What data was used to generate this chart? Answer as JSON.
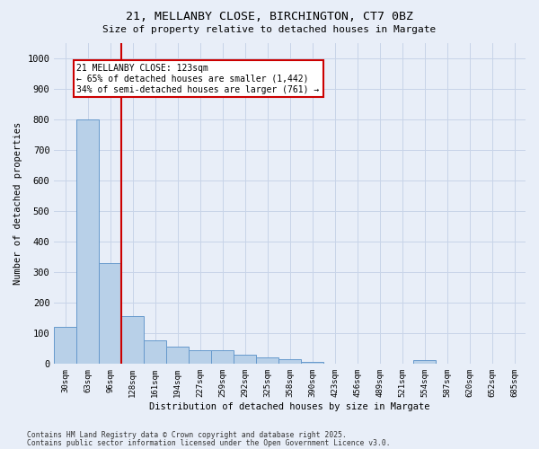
{
  "title": "21, MELLANBY CLOSE, BIRCHINGTON, CT7 0BZ",
  "subtitle": "Size of property relative to detached houses in Margate",
  "xlabel": "Distribution of detached houses by size in Margate",
  "ylabel": "Number of detached properties",
  "bar_color": "#b8d0e8",
  "bar_edge_color": "#6699cc",
  "background_color": "#e8eef8",
  "plot_bg_color": "#e8eef8",
  "grid_color": "#c8d4e8",
  "fig_bg_color": "#e8eef8",
  "categories": [
    "30sqm",
    "63sqm",
    "96sqm",
    "128sqm",
    "161sqm",
    "194sqm",
    "227sqm",
    "259sqm",
    "292sqm",
    "325sqm",
    "358sqm",
    "390sqm",
    "423sqm",
    "456sqm",
    "489sqm",
    "521sqm",
    "554sqm",
    "587sqm",
    "620sqm",
    "652sqm",
    "685sqm"
  ],
  "values": [
    120,
    800,
    330,
    155,
    75,
    55,
    45,
    45,
    30,
    20,
    15,
    5,
    0,
    0,
    0,
    0,
    10,
    0,
    0,
    0,
    0
  ],
  "ylim": [
    0,
    1050
  ],
  "yticks": [
    0,
    100,
    200,
    300,
    400,
    500,
    600,
    700,
    800,
    900,
    1000
  ],
  "red_line_idx": 2.5,
  "marker_label": "21 MELLANBY CLOSE: 123sqm",
  "annotation_line1": "← 65% of detached houses are smaller (1,442)",
  "annotation_line2": "34% of semi-detached houses are larger (761) →",
  "annotation_box_color": "#ffffff",
  "annotation_box_edge": "#cc0000",
  "red_line_color": "#cc0000",
  "footnote1": "Contains HM Land Registry data © Crown copyright and database right 2025.",
  "footnote2": "Contains public sector information licensed under the Open Government Licence v3.0."
}
